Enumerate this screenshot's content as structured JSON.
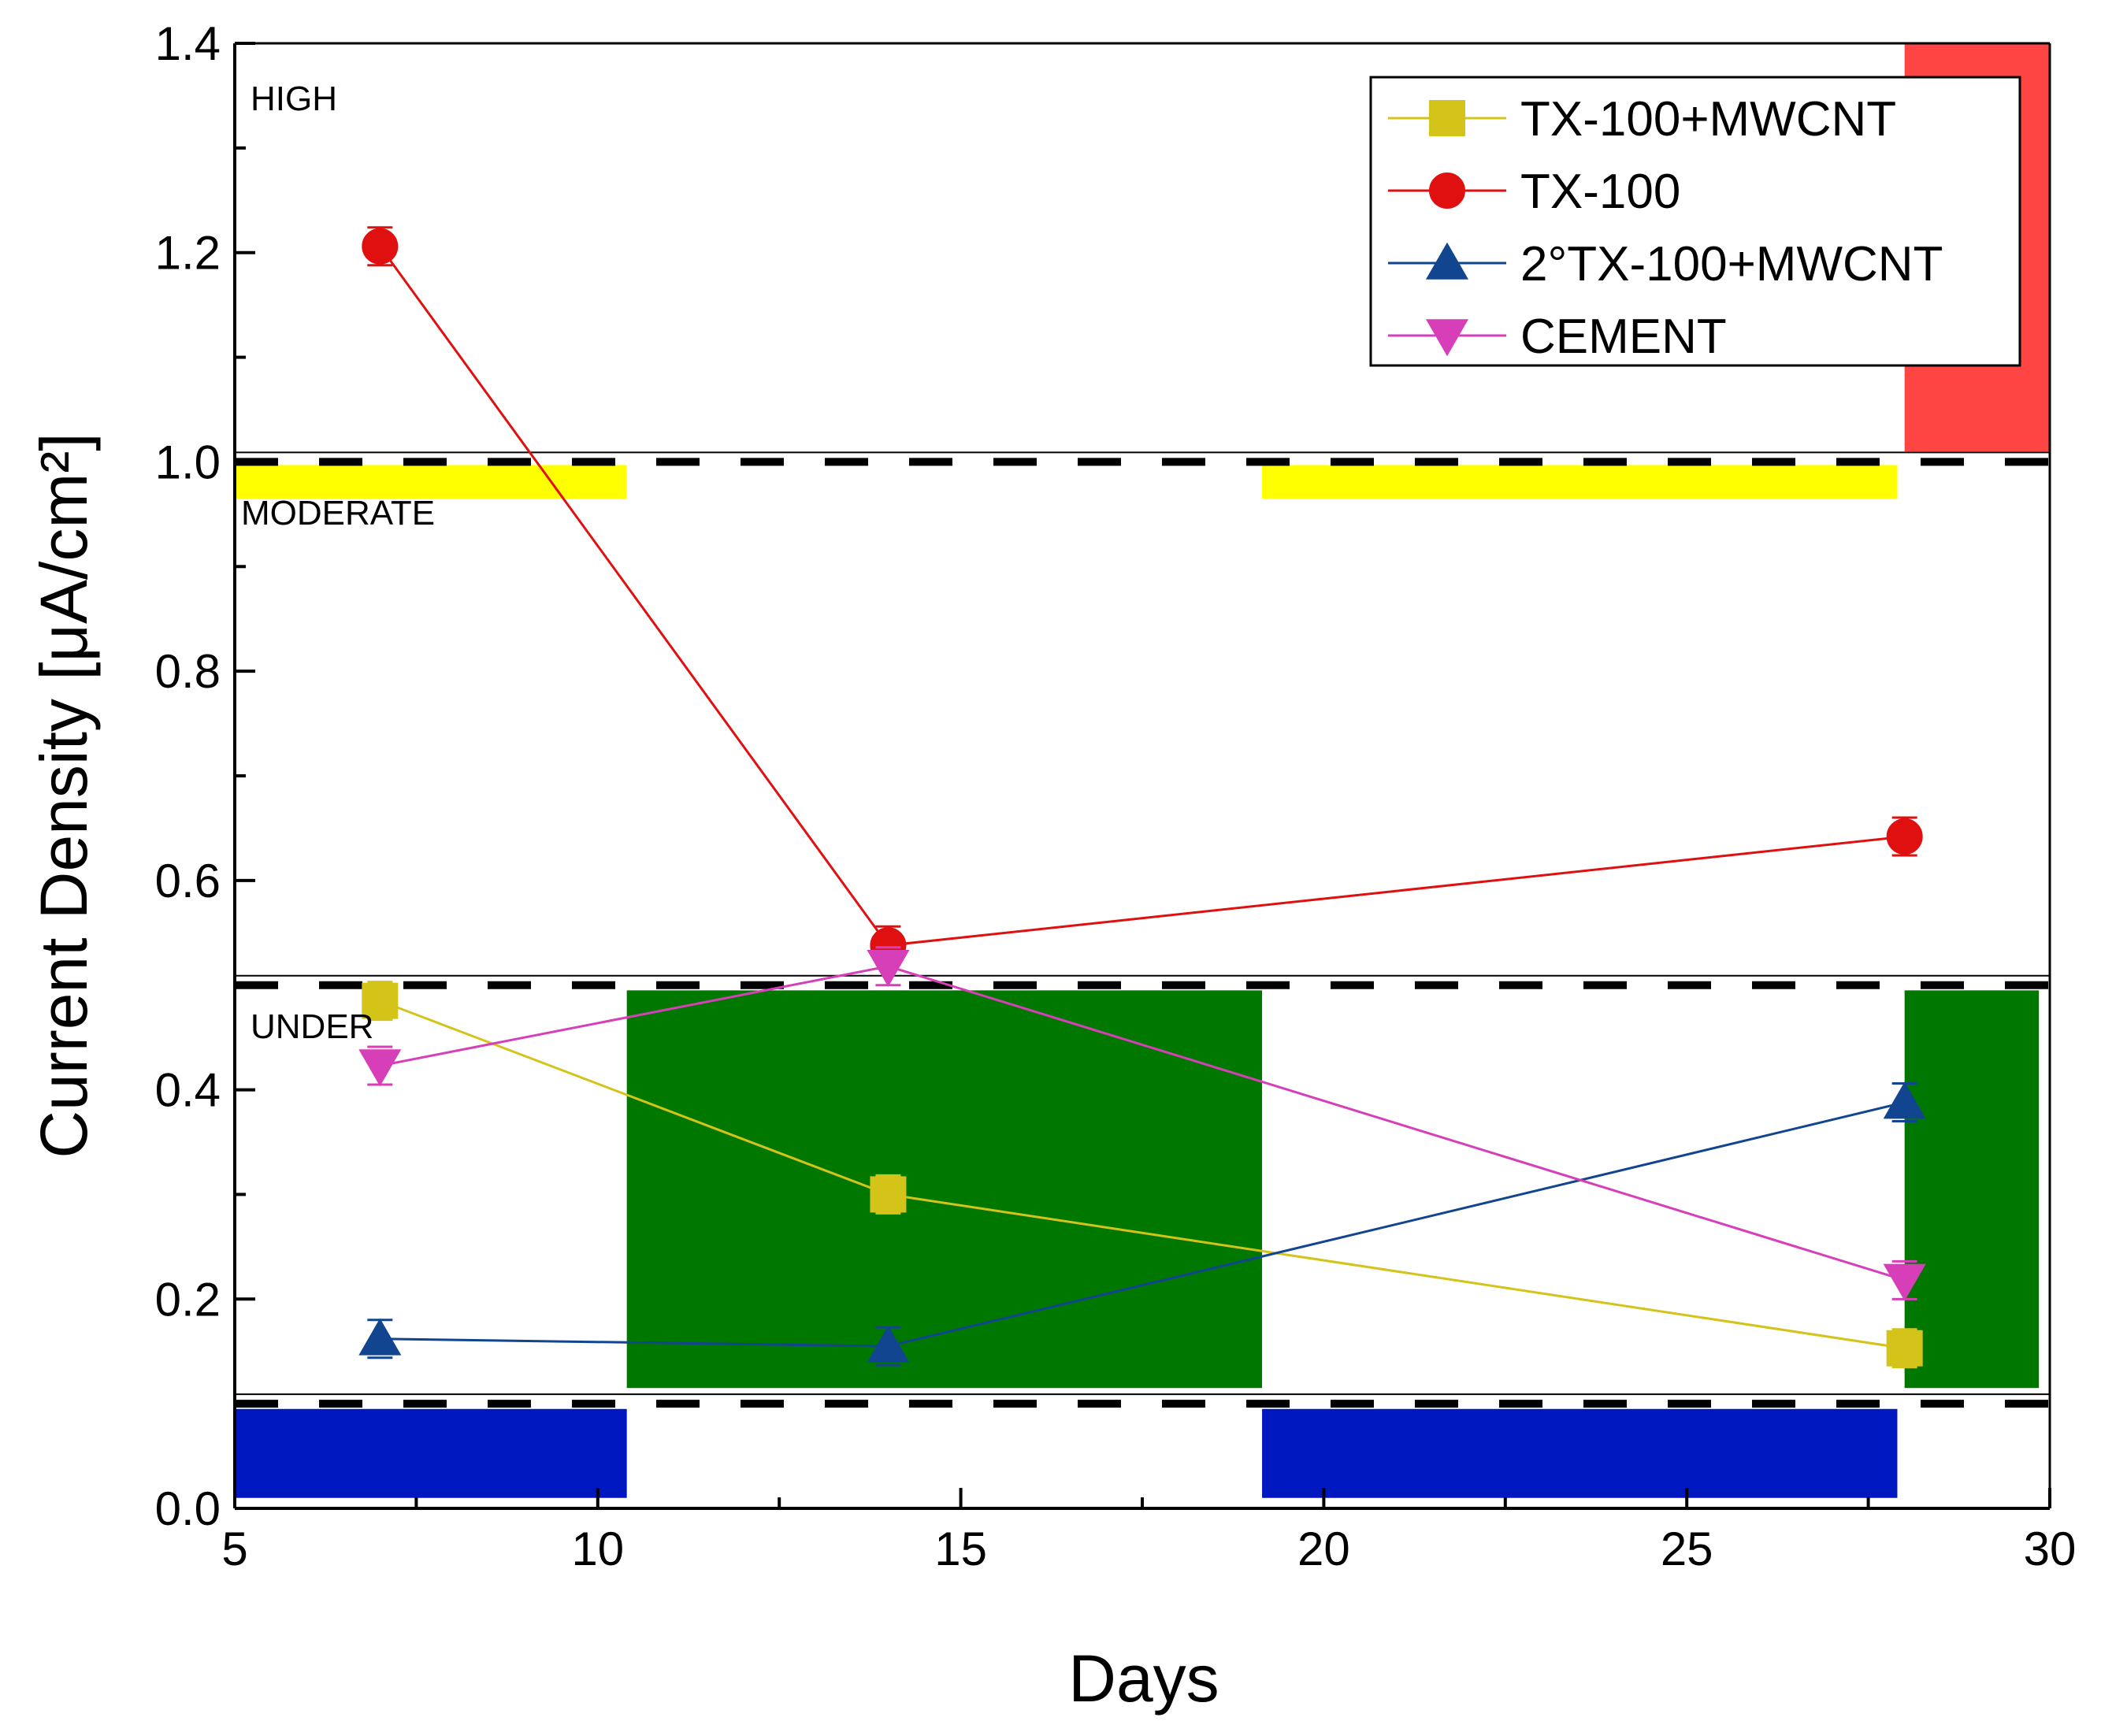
{
  "chart_data": {
    "type": "line",
    "title": "",
    "xlabel": "Days",
    "ylabel": "Current Density  [μA/cm²]",
    "xlim": [
      5,
      30
    ],
    "ylim": [
      0.0,
      1.4
    ],
    "x_ticks": [
      5,
      10,
      15,
      20,
      25,
      30
    ],
    "x_tick_labels": [
      "5",
      "10",
      "15",
      "20",
      "25",
      "30"
    ],
    "y_ticks": [
      0.0,
      0.2,
      0.4,
      0.6,
      0.8,
      1.0,
      1.2,
      1.4
    ],
    "y_tick_labels": [
      "0.0",
      "0.2",
      "0.4",
      "0.6",
      "0.8",
      "1.0",
      "1.2",
      "1.4"
    ],
    "x": [
      7,
      14,
      28
    ],
    "series": [
      {
        "name": "TX-100+MWCNT",
        "marker": "square",
        "color": "#d4c41a",
        "values": [
          0.485,
          0.3,
          0.153
        ]
      },
      {
        "name": "TX-100",
        "marker": "circle",
        "color": "#e01010",
        "values": [
          1.206,
          0.538,
          0.642
        ]
      },
      {
        "name": "2°TX-100+MWCNT",
        "marker": "triangle-up",
        "color": "#12458f",
        "values": [
          0.162,
          0.155,
          0.388
        ]
      },
      {
        "name": "CEMENT",
        "marker": "triangle-down",
        "color": "#d63fb8",
        "values": [
          0.423,
          0.518,
          0.218
        ]
      }
    ],
    "zones": [
      {
        "label": "HIGH",
        "y_from": 1.0,
        "y_to": 1.4
      },
      {
        "label": "MODERATE",
        "y_from": 0.5,
        "y_to": 1.0
      },
      {
        "label": "UNDER",
        "y_from": 0.1,
        "y_to": 0.5
      }
    ],
    "thresholds": [
      1.0,
      0.5,
      0.1
    ],
    "overlay_bands": [
      {
        "color": "#ffff00",
        "x_from": 5.0,
        "x_to": 10.4,
        "y_from": 0.965,
        "y_to": 0.997
      },
      {
        "color": "#ffff00",
        "x_from": 19.15,
        "x_to": 27.9,
        "y_from": 0.965,
        "y_to": 0.997
      },
      {
        "color": "#ff4444",
        "x_from": 28.0,
        "x_to": 30.0,
        "y_from": 1.01,
        "y_to": 1.4
      },
      {
        "color": "#007800",
        "x_from": 10.4,
        "x_to": 19.15,
        "y_from": 0.115,
        "y_to": 0.495
      },
      {
        "color": "#007800",
        "x_from": 28.0,
        "x_to": 29.85,
        "y_from": 0.115,
        "y_to": 0.495
      },
      {
        "color": "#0018c0",
        "x_from": 5.0,
        "x_to": 10.4,
        "y_from": 0.01,
        "y_to": 0.095
      },
      {
        "color": "#0018c0",
        "x_from": 19.15,
        "x_to": 27.9,
        "y_from": 0.01,
        "y_to": 0.095
      }
    ],
    "legend_position": "top-right",
    "grid": false
  }
}
